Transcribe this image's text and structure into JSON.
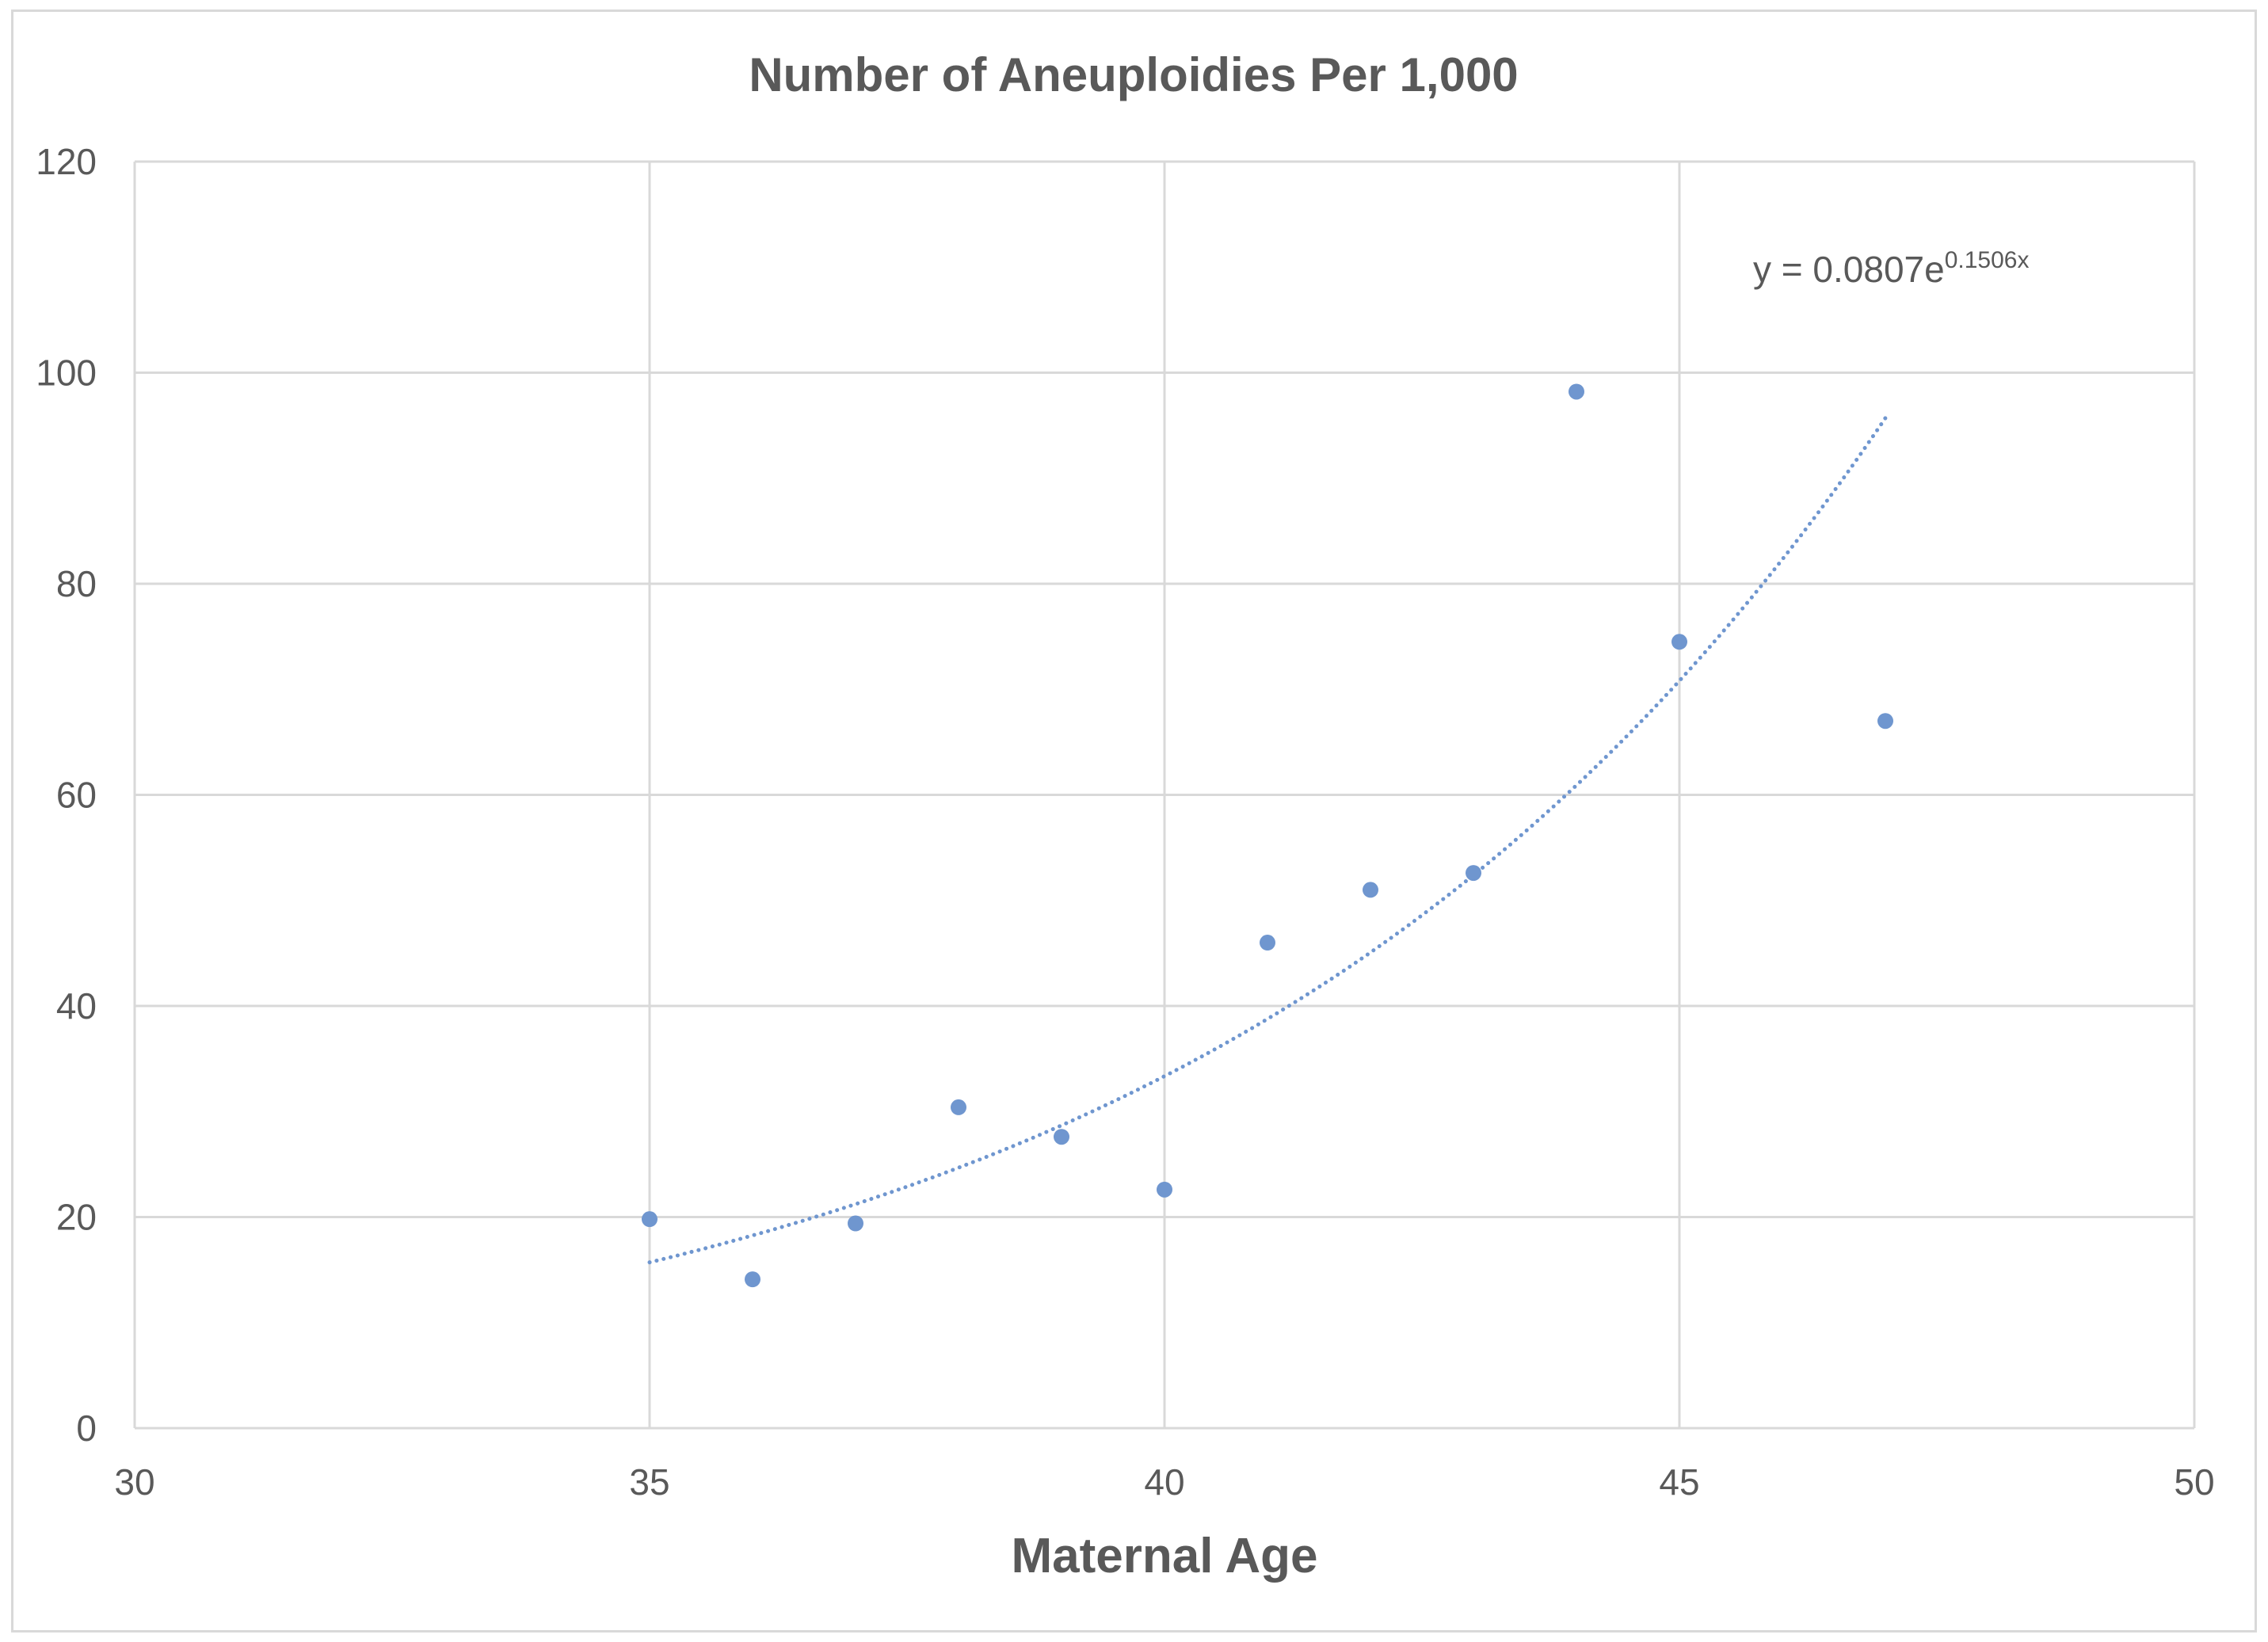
{
  "chart_data": {
    "type": "scatter",
    "title": "Number of Aneuploidies Per 1,000",
    "xlabel": "Maternal Age",
    "ylabel": "",
    "xlim": [
      30,
      50
    ],
    "ylim": [
      0,
      120
    ],
    "xticks": [
      30,
      35,
      40,
      45,
      50
    ],
    "yticks": [
      0,
      20,
      40,
      60,
      80,
      100,
      120
    ],
    "grid": true,
    "legend": "none",
    "series": [
      {
        "x": [
          35,
          36,
          37,
          38,
          39,
          40,
          41,
          42,
          43,
          44,
          45,
          47
        ],
        "y": [
          19.8,
          14.1,
          19.4,
          30.4,
          27.6,
          22.6,
          46.0,
          51.0,
          52.6,
          98.2,
          74.5,
          67.0
        ],
        "color": "#6f96cf"
      }
    ],
    "trendline": {
      "type": "exponential",
      "a": 0.0807,
      "b": 0.1506,
      "x_range": [
        35,
        47
      ],
      "style": "dotted",
      "color": "#6f96cf",
      "equation_prefix": "y = 0.0807e",
      "equation_exponent": "0.1506x"
    },
    "colors": {
      "grid": "#d9d9d9",
      "text": "#595959",
      "marker": "#6f96cf"
    }
  }
}
